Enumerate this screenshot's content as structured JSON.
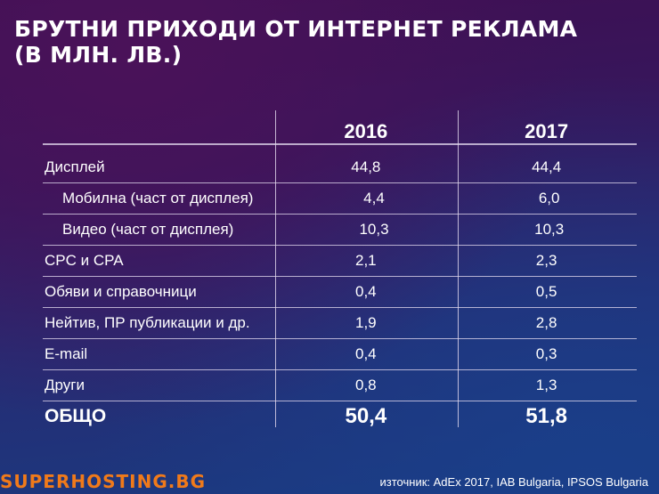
{
  "title": {
    "line1": "БРУТНИ ПРИХОДИ ОТ ИНТЕРНЕТ РЕКЛАМА",
    "line2": "(В МЛН. ЛВ.)"
  },
  "table": {
    "columns": [
      "",
      "2016",
      "2017"
    ],
    "rows": [
      {
        "label": "Дисплей",
        "v2016": "44,8",
        "v2017": "44,4"
      },
      {
        "label": "Мобилна (част от дисплея)",
        "v2016": "4,4",
        "v2017": "6,0"
      },
      {
        "label": "Видео (част от дисплея)",
        "v2016": "10,3",
        "v2017": "10,3"
      },
      {
        "label": "CPC и CPA",
        "v2016": "2,1",
        "v2017": "2,3"
      },
      {
        "label": "Обяви и справочници",
        "v2016": "0,4",
        "v2017": "0,5"
      },
      {
        "label": "Нейтив, ПР публикации и др.",
        "v2016": "1,9",
        "v2017": "2,8"
      },
      {
        "label": "E-mail",
        "v2016": "0,4",
        "v2017": "0,3"
      },
      {
        "label": "Други",
        "v2016": "0,8",
        "v2017": "1,3"
      }
    ],
    "total": {
      "label": "ОБЩО",
      "v2016": "50,4",
      "v2017": "51,8"
    }
  },
  "footer": {
    "brand": "SUPERHOSTING.BG",
    "source": "източник: AdEx 2017, IAB Bulgaria, IPSOS Bulgaria",
    "brand_color": "#f07a1a"
  }
}
